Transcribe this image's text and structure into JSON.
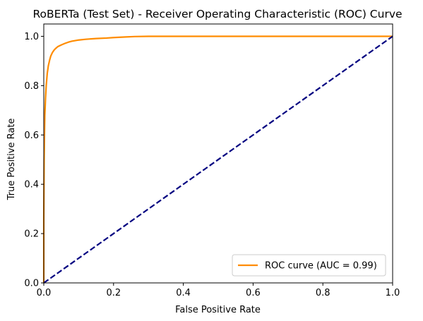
{
  "chart_data": {
    "type": "line",
    "title": "RoBERTa (Test Set) - Receiver Operating Characteristic (ROC) Curve",
    "xlabel": "False Positive Rate",
    "ylabel": "True Positive Rate",
    "xlim": [
      0.0,
      1.0
    ],
    "ylim": [
      0.0,
      1.05
    ],
    "xticks": [
      "0.0",
      "0.2",
      "0.4",
      "0.6",
      "0.8",
      "1.0"
    ],
    "yticks": [
      "0.0",
      "0.2",
      "0.4",
      "0.6",
      "0.8",
      "1.0"
    ],
    "grid": false,
    "legend_position": "lower right",
    "series": [
      {
        "name": "ROC curve (AUC = 0.99)",
        "color": "#ff8c00",
        "style": "solid",
        "x": [
          0.0,
          0.0,
          0.001,
          0.002,
          0.003,
          0.005,
          0.007,
          0.01,
          0.013,
          0.017,
          0.02,
          0.025,
          0.03,
          0.035,
          0.04,
          0.05,
          0.06,
          0.07,
          0.08,
          0.1,
          0.12,
          0.15,
          0.18,
          0.2,
          0.23,
          0.26,
          0.3,
          0.4,
          0.5,
          0.6,
          0.7,
          0.8,
          0.9,
          1.0
        ],
        "y": [
          0.0,
          0.26,
          0.5,
          0.6,
          0.68,
          0.75,
          0.8,
          0.85,
          0.88,
          0.905,
          0.92,
          0.935,
          0.945,
          0.952,
          0.958,
          0.965,
          0.971,
          0.976,
          0.98,
          0.985,
          0.988,
          0.991,
          0.993,
          0.995,
          0.997,
          0.999,
          1.0,
          1.0,
          1.0,
          1.0,
          1.0,
          1.0,
          1.0,
          1.0
        ]
      },
      {
        "name": "",
        "color": "#000080",
        "style": "dashed",
        "x": [
          0.0,
          1.0
        ],
        "y": [
          0.0,
          1.0
        ]
      }
    ]
  }
}
